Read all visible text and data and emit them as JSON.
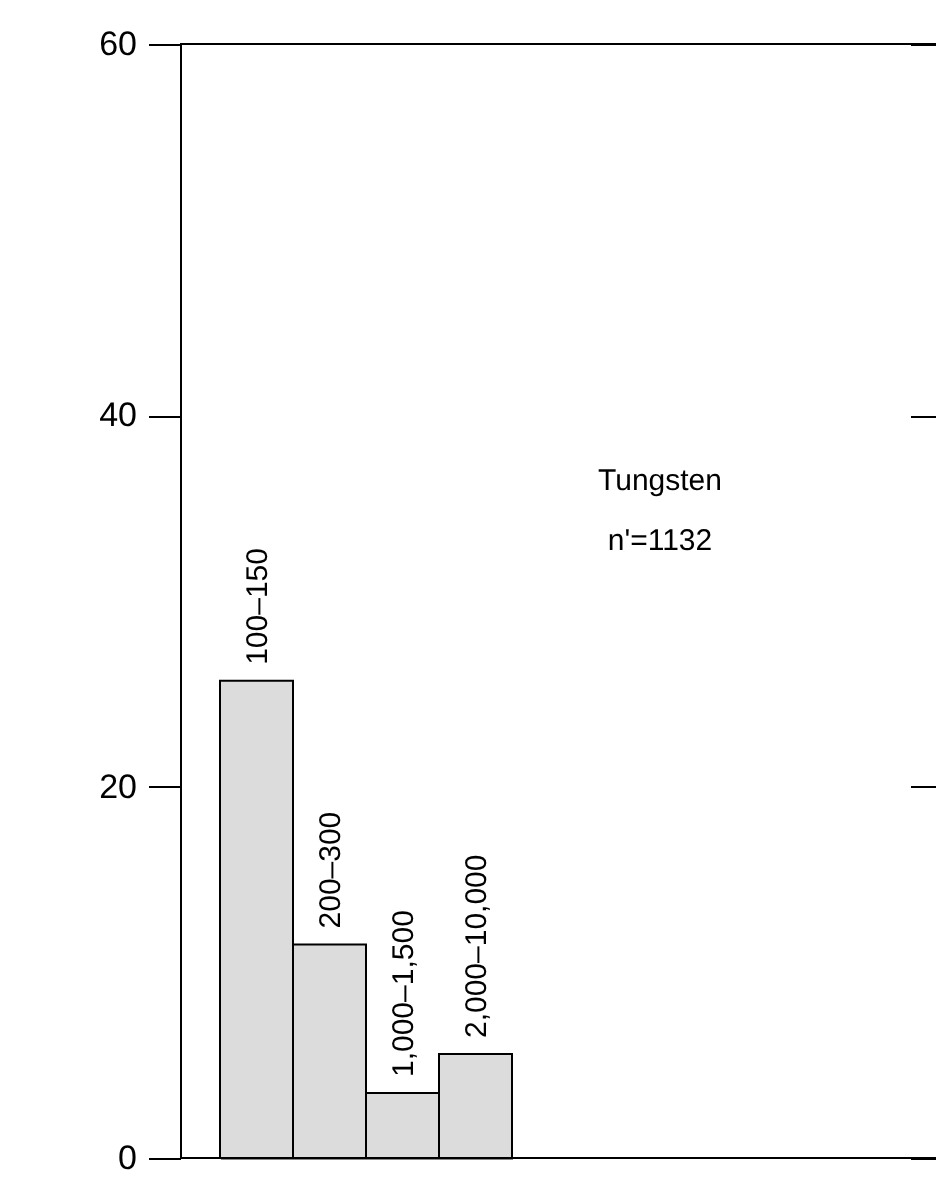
{
  "chart_data": {
    "type": "bar",
    "categories": [
      "100–150",
      "200–300",
      "1,000–1,500",
      "2,000–10,000"
    ],
    "values": [
      25.7,
      11.5,
      3.5,
      5.6
    ],
    "color": "#dcdcdc",
    "ylim": [
      0,
      60
    ],
    "yticks": [
      0,
      20,
      40,
      60
    ],
    "data_labels": false,
    "tick_labels": "y",
    "grid": false,
    "annotations": [
      "Tungsten",
      "n'=1132"
    ]
  }
}
